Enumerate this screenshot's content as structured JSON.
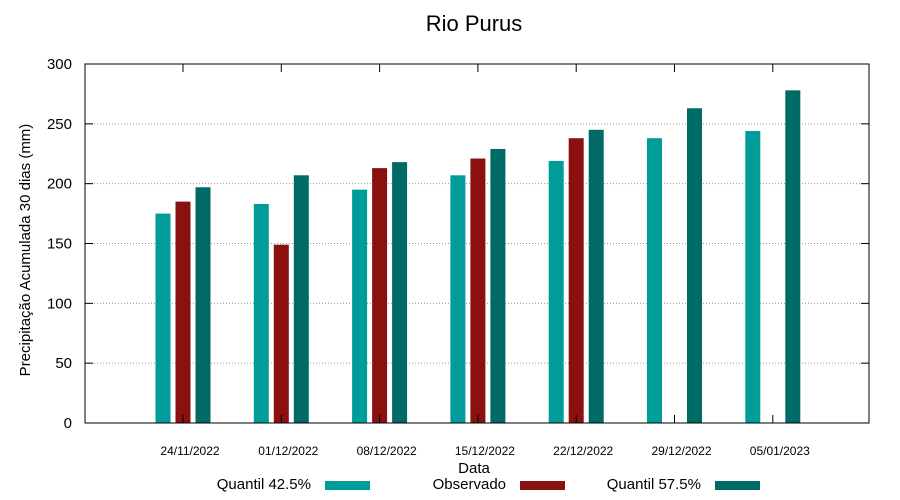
{
  "chart_data": {
    "type": "bar",
    "title": "Rio Purus",
    "xlabel": "Data",
    "ylabel": "Precipitação Acumulada 30 dias (mm)",
    "ylim": [
      0,
      300
    ],
    "yticks": [
      0,
      50,
      100,
      150,
      200,
      250,
      300
    ],
    "grid": true,
    "legend": "bottom",
    "categories": [
      "24/11/2022",
      "01/12/2022",
      "08/12/2022",
      "15/12/2022",
      "22/12/2022",
      "29/12/2022",
      "05/01/2023"
    ],
    "series": [
      {
        "name": "Quantil 42.5%",
        "color": "#009c9a",
        "values": [
          175,
          183,
          195,
          207,
          219,
          238,
          244
        ]
      },
      {
        "name": "Observado",
        "color": "#8b1010",
        "values": [
          185,
          149,
          213,
          221,
          238,
          null,
          null
        ]
      },
      {
        "name": "Quantil 57.5%",
        "color": "#006a66",
        "values": [
          197,
          207,
          218,
          229,
          245,
          263,
          278
        ]
      }
    ]
  }
}
